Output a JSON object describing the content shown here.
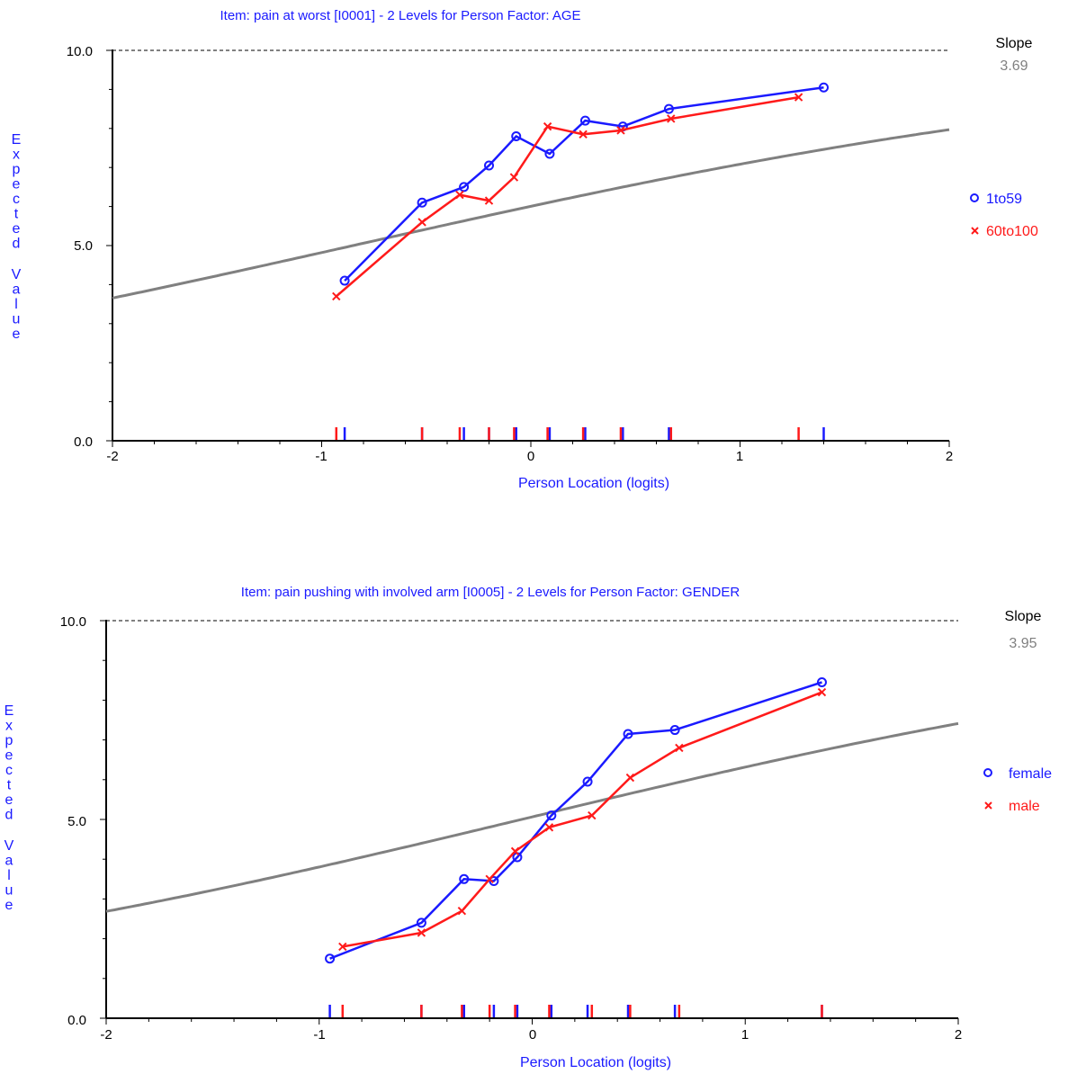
{
  "colors": {
    "series1": "#1a1aff",
    "series2": "#ff1a1a",
    "curve": "#808080",
    "axis": "#000000",
    "labels": "#1a1aff"
  },
  "chart_data": [
    {
      "type": "line",
      "title": "Item: pain at worst [I0001] - 2 Levels for Person Factor: AGE",
      "xlabel": "Person Location (logits)",
      "ylabel": "Expected Value",
      "xlim": [
        -2,
        2
      ],
      "ylim": [
        0,
        10
      ],
      "xticks": [
        "-2",
        "-1",
        "0",
        "1",
        "2"
      ],
      "yticks": [
        "0.0",
        "5.0",
        "10.0"
      ],
      "slope_label": "Slope",
      "slope": "3.69",
      "expected_curve": {
        "slope": 3.69,
        "center": -0.85,
        "max": 10
      },
      "series": [
        {
          "name": "1to59",
          "marker": "o",
          "x": [
            -0.89,
            -0.52,
            -0.32,
            -0.2,
            -0.07,
            0.09,
            0.26,
            0.44,
            0.66,
            1.4
          ],
          "y": [
            4.1,
            6.1,
            6.5,
            7.05,
            7.8,
            7.35,
            8.2,
            8.05,
            8.5,
            9.05
          ]
        },
        {
          "name": "60to100",
          "marker": "x",
          "x": [
            -0.93,
            -0.52,
            -0.34,
            -0.2,
            -0.08,
            0.08,
            0.25,
            0.43,
            0.67,
            1.28
          ],
          "y": [
            3.7,
            5.6,
            6.3,
            6.15,
            6.75,
            8.05,
            7.85,
            7.95,
            8.25,
            8.8
          ]
        }
      ]
    },
    {
      "type": "line",
      "title": "Item: pain pushing with involved arm [I0005] - 2 Levels for Person Factor: GENDER",
      "xlabel": "Person Location (logits)",
      "ylabel": "Expected Value",
      "xlim": [
        -2,
        2
      ],
      "ylim": [
        0,
        10
      ],
      "xticks": [
        "-2",
        "-1",
        "0",
        "1",
        "2"
      ],
      "yticks": [
        "0.0",
        "5.0",
        "10.0"
      ],
      "slope_label": "Slope",
      "slope": "3.95",
      "expected_curve": {
        "slope": 3.95,
        "center": -0.05,
        "max": 10
      },
      "series": [
        {
          "name": "female",
          "marker": "o",
          "x": [
            -0.95,
            -0.52,
            -0.32,
            -0.18,
            -0.07,
            0.09,
            0.26,
            0.45,
            0.67,
            1.36
          ],
          "y": [
            1.5,
            2.4,
            3.5,
            3.45,
            4.05,
            5.1,
            5.95,
            7.15,
            7.25,
            8.45
          ]
        },
        {
          "name": "male",
          "marker": "x",
          "x": [
            -0.89,
            -0.52,
            -0.33,
            -0.2,
            -0.08,
            0.08,
            0.28,
            0.46,
            0.69,
            1.36
          ],
          "y": [
            1.8,
            2.15,
            2.7,
            3.5,
            4.2,
            4.8,
            5.1,
            6.05,
            6.8,
            8.2
          ]
        }
      ]
    }
  ]
}
